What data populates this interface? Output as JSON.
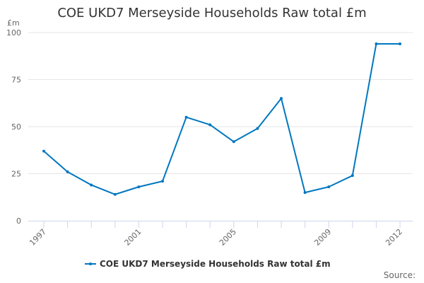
{
  "chart_data": {
    "type": "line",
    "title": "COE UKD7 Merseyside Households Raw total £m",
    "ylabel": "£m",
    "xlabel": "",
    "ylim": [
      0,
      100
    ],
    "yticks": [
      0,
      25,
      50,
      75,
      100
    ],
    "x": [
      1997,
      1998,
      1999,
      2000,
      2001,
      2002,
      2003,
      2004,
      2005,
      2006,
      2007,
      2008,
      2009,
      2010,
      2011,
      2012
    ],
    "xtick_labels": [
      "1997",
      "2001",
      "2005",
      "2009",
      "2012"
    ],
    "grid": true,
    "legend_position": "bottom",
    "series": [
      {
        "name": "COE UKD7 Merseyside Households Raw total £m",
        "color": "#0077c0",
        "values": [
          37,
          26,
          19,
          14,
          18,
          21,
          55,
          51,
          42,
          49,
          65,
          15,
          18,
          24,
          94,
          94
        ]
      }
    ]
  },
  "footer": {
    "source_label": "Source:"
  }
}
